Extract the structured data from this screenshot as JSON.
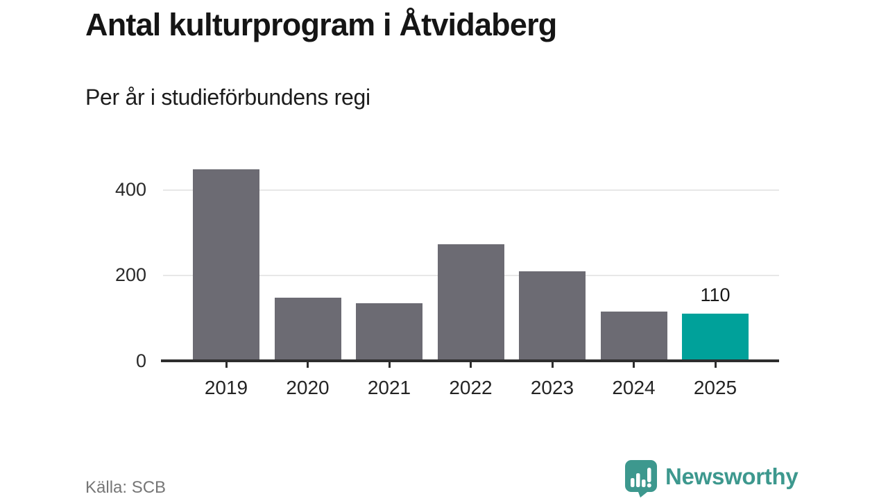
{
  "header": {
    "title": "Antal kulturprogram i Åtvidaberg",
    "subtitle": "Per år i studieförbundens regi"
  },
  "chart_data": {
    "type": "bar",
    "title": "Antal kulturprogram i Åtvidaberg",
    "subtitle": "Per år i studieförbundens regi",
    "categories": [
      "2019",
      "2020",
      "2021",
      "2022",
      "2023",
      "2024",
      "2025"
    ],
    "values": [
      448,
      147,
      134,
      272,
      210,
      116,
      110
    ],
    "xlabel": "",
    "ylabel": "",
    "yticks": [
      0,
      200,
      400
    ],
    "ylim": [
      0,
      470
    ],
    "grid": "horizontal",
    "legend": "none",
    "bar_color": "#6c6b73",
    "highlight_color": "#00a19a",
    "highlight_category": "2025",
    "annotation": {
      "text": "110",
      "category": "2025"
    }
  },
  "footer": {
    "source": "Källa: SCB",
    "brand": "Newsworthy"
  },
  "colors": {
    "axis": "#2d2d2d",
    "gridline": "#e7e7e7",
    "logo_teal": "#3d988e"
  }
}
